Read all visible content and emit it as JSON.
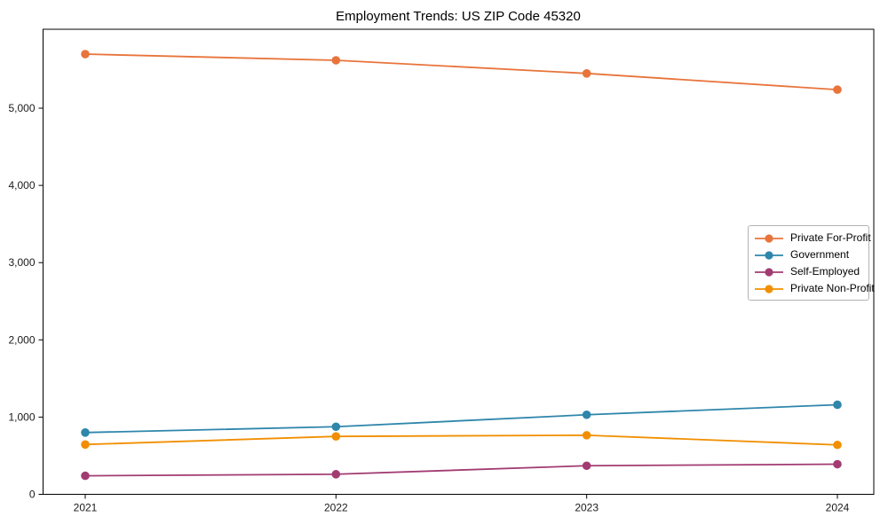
{
  "chart_data": {
    "type": "line",
    "title": "Employment Trends: US ZIP Code 45320",
    "xlabel": "",
    "ylabel": "",
    "categories": [
      "2021",
      "2022",
      "2023",
      "2024"
    ],
    "series": [
      {
        "name": "Private For-Profit",
        "color": "#E8743B",
        "values": [
          5700,
          5620,
          5450,
          5240
        ]
      },
      {
        "name": "Government",
        "color": "#2E86AB",
        "values": [
          800,
          875,
          1030,
          1160
        ]
      },
      {
        "name": "Self-Employed",
        "color": "#A23B72",
        "values": [
          240,
          260,
          370,
          390
        ]
      },
      {
        "name": "Private Non-Profit",
        "color": "#F18F01",
        "values": [
          645,
          750,
          765,
          640
        ]
      }
    ],
    "ylim": [
      0,
      6000
    ],
    "yticks": [
      0,
      1000,
      2000,
      3000,
      4000,
      5000
    ],
    "ytick_labels": [
      "0",
      "1,000",
      "2,000",
      "3,000",
      "4,000",
      "5,000"
    ],
    "grid": false,
    "legend_position": "center-right",
    "axis_color": "#000000",
    "tick_label_color": "#1a1a1a"
  }
}
